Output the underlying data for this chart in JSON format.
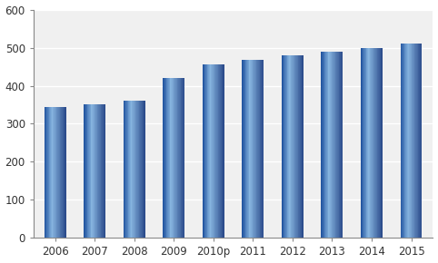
{
  "categories": [
    "2006",
    "2007",
    "2008",
    "2009",
    "2010p",
    "2011",
    "2012",
    "2013",
    "2014",
    "2015"
  ],
  "values": [
    345,
    352,
    360,
    420,
    456,
    468,
    480,
    490,
    500,
    510
  ],
  "bar_color_main": "#4472C4",
  "bar_color_light": "#7AAAD4",
  "bar_color_dark": "#2255A0",
  "ylim": [
    0,
    600
  ],
  "yticks": [
    0,
    100,
    200,
    300,
    400,
    500,
    600
  ],
  "background_color": "#FFFFFF",
  "plot_bg_color": "#F0F0F0",
  "grid_color": "#FFFFFF",
  "axis_color": "#AAAAAA",
  "tick_fontsize": 8.5,
  "bar_width": 0.55
}
